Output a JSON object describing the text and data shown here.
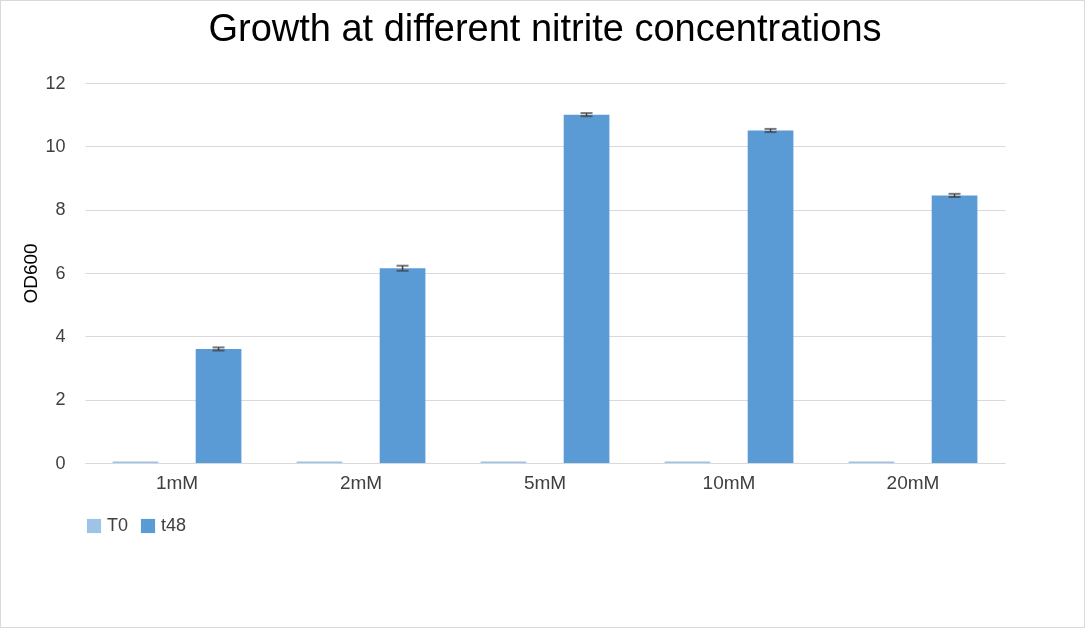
{
  "chart_data": {
    "type": "bar",
    "title": "Growth at different nitrite concentrations",
    "ylabel": "OD600",
    "categories": [
      "1mM",
      "2mM",
      "5mM",
      "10mM",
      "20mM"
    ],
    "series": [
      {
        "name": "T0",
        "color": "#9dc3e6",
        "values": [
          0.05,
          0.05,
          0.05,
          0.05,
          0.05
        ]
      },
      {
        "name": "t48",
        "color": "#5b9bd5",
        "values": [
          3.6,
          6.15,
          11.0,
          10.5,
          8.45
        ],
        "errors": [
          0.05,
          0.08,
          0.05,
          0.05,
          0.05
        ]
      }
    ],
    "ylim": [
      0,
      12
    ],
    "yticks": [
      0,
      2,
      4,
      6,
      8,
      10,
      12
    ],
    "grid": "y",
    "legend": "bottom"
  }
}
